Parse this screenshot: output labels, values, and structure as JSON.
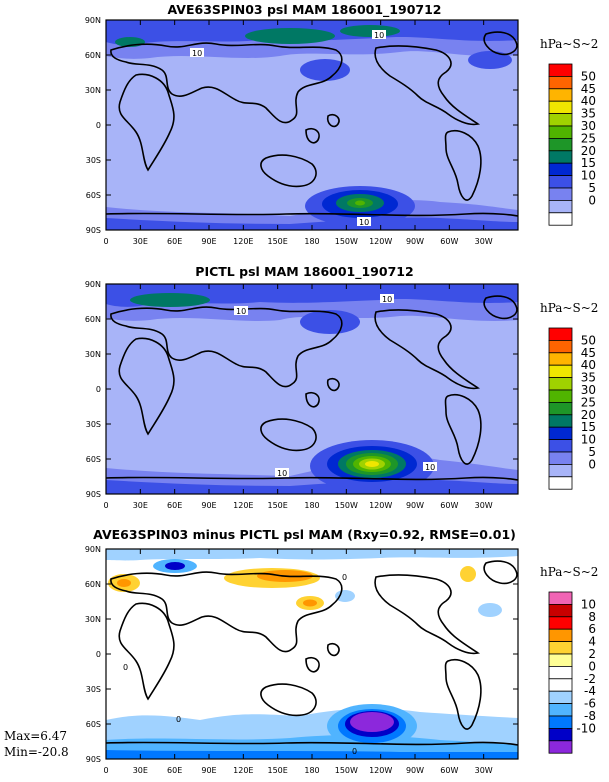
{
  "panels": [
    {
      "title": "AVE63SPIN03 psl MAM 186001_190712",
      "units": "hPa~S~2",
      "colorbar_labels": [
        "50",
        "45",
        "40",
        "35",
        "30",
        "25",
        "20",
        "15",
        "10",
        "5",
        "0"
      ],
      "colorbar_colors": [
        "#ff0000",
        "#ff6400",
        "#ffb400",
        "#f0e600",
        "#a0d200",
        "#50b400",
        "#1e9628",
        "#007864",
        "#0028d2",
        "#3c50e6",
        "#7882f0",
        "#a8b4f8",
        "#ffffff"
      ],
      "contour_labels": [
        "10",
        "10",
        "10"
      ]
    },
    {
      "title": "PICTL psl MAM 186001_190712",
      "units": "hPa~S~2",
      "colorbar_labels": [
        "50",
        "45",
        "40",
        "35",
        "30",
        "25",
        "20",
        "15",
        "10",
        "5",
        "0"
      ],
      "colorbar_colors": [
        "#ff0000",
        "#ff6400",
        "#ffb400",
        "#f0e600",
        "#a0d200",
        "#50b400",
        "#1e9628",
        "#007864",
        "#0028d2",
        "#3c50e6",
        "#7882f0",
        "#a8b4f8",
        "#ffffff"
      ],
      "contour_labels": [
        "10",
        "10",
        "10",
        "10"
      ]
    },
    {
      "title": "AVE63SPIN03 minus PICTL psl MAM (Rxy=0.92, RMSE=0.01)",
      "units": "hPa~S~2",
      "colorbar_labels": [
        "10",
        "8",
        "6",
        "4",
        "2",
        "0",
        "-2",
        "-4",
        "-6",
        "-8",
        "-10"
      ],
      "colorbar_colors": [
        "#f064b4",
        "#c80000",
        "#ff0000",
        "#ff9600",
        "#ffd232",
        "#ffff96",
        "#ffffff",
        "#ffffff",
        "#a0d2ff",
        "#50b4ff",
        "#0078ff",
        "#0000c8",
        "#8c28dc"
      ],
      "contour_labels": [
        "0",
        "0",
        "0",
        "0"
      ]
    }
  ],
  "lat_labels": [
    "90N",
    "60N",
    "30N",
    "0",
    "30S",
    "60S",
    "90S"
  ],
  "lon_labels": [
    "0",
    "30E",
    "60E",
    "90E",
    "120E",
    "150E",
    "180",
    "150W",
    "120W",
    "90W",
    "60W",
    "30W"
  ],
  "stats": {
    "max": "Max=6.47",
    "min": "Min=-20.8"
  }
}
